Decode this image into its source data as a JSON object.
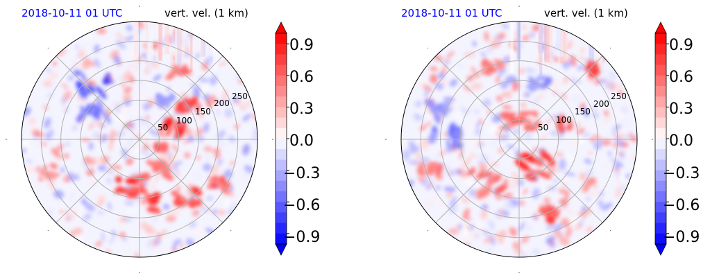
{
  "chart_data": [
    {
      "type": "heatmap",
      "title_left": "2018-10-11 01 UTC",
      "title_right": "vert. vel. (1 km)",
      "title_left_color": "#0000ff",
      "projection": "polar",
      "radial_ticks": [
        "50",
        "100",
        "150",
        "200",
        "250"
      ],
      "radial_tick_values": [
        50,
        100,
        150,
        200,
        250
      ],
      "radial_max": 300,
      "angular_grid_deg": 45,
      "grid": true,
      "colormap": "bwr",
      "colorbar": {
        "min": -1.0,
        "max": 1.0,
        "extend": "both",
        "ticks": [
          "0.9",
          "0.6",
          "0.3",
          "0.0",
          "−0.3",
          "−0.6",
          "−0.9"
        ],
        "tick_values": [
          0.9,
          0.6,
          0.3,
          0.0,
          -0.3,
          -0.6,
          -0.9
        ]
      },
      "features": [
        {
          "r": 100,
          "theta": 20,
          "value": 0.9,
          "size": 40
        },
        {
          "r": 150,
          "theta": 35,
          "value": 0.8,
          "size": 35
        },
        {
          "r": 120,
          "theta": 55,
          "value": -0.5,
          "size": 30
        },
        {
          "r": 200,
          "theta": 60,
          "value": 0.7,
          "size": 30
        },
        {
          "r": 180,
          "theta": 130,
          "value": -0.8,
          "size": 60
        },
        {
          "r": 140,
          "theta": 150,
          "value": -0.6,
          "size": 50
        },
        {
          "r": 120,
          "theta": 260,
          "value": 0.9,
          "size": 50
        },
        {
          "r": 170,
          "theta": 290,
          "value": 0.9,
          "size": 45
        },
        {
          "r": 200,
          "theta": 310,
          "value": 0.8,
          "size": 40
        },
        {
          "r": 90,
          "theta": 300,
          "value": 0.6,
          "size": 35
        },
        {
          "r": 240,
          "theta": 200,
          "value": 0.5,
          "size": 30
        },
        {
          "r": 60,
          "theta": 340,
          "value": 0.9,
          "size": 20
        },
        {
          "r": 230,
          "theta": 330,
          "value": 0.7,
          "size": 30
        }
      ]
    },
    {
      "type": "heatmap",
      "title_left": "2018-10-11 01 UTC",
      "title_right": "vert. vel. (1 km)",
      "title_left_color": "#0000ff",
      "projection": "polar",
      "radial_ticks": [
        "50",
        "100",
        "150",
        "200",
        "250"
      ],
      "radial_tick_values": [
        50,
        100,
        150,
        200,
        250
      ],
      "radial_max": 300,
      "angular_grid_deg": 45,
      "grid": true,
      "colormap": "bwr",
      "colorbar": {
        "min": -1.0,
        "max": 1.0,
        "extend": "both",
        "ticks": [
          "0.9",
          "0.6",
          "0.3",
          "0.0",
          "−0.3",
          "−0.6",
          "−0.9"
        ],
        "tick_values": [
          0.9,
          0.6,
          0.3,
          0.0,
          -0.3,
          -0.6,
          -0.9
        ]
      },
      "features": [
        {
          "r": 60,
          "theta": 90,
          "value": 0.7,
          "size": 60
        },
        {
          "r": 80,
          "theta": 300,
          "value": 0.9,
          "size": 60
        },
        {
          "r": 140,
          "theta": 230,
          "value": 0.7,
          "size": 60
        },
        {
          "r": 180,
          "theta": 180,
          "value": -0.6,
          "size": 50
        },
        {
          "r": 220,
          "theta": 160,
          "value": -0.5,
          "size": 40
        },
        {
          "r": 200,
          "theta": 110,
          "value": 0.6,
          "size": 40
        },
        {
          "r": 250,
          "theta": 45,
          "value": 0.9,
          "size": 30
        },
        {
          "r": 200,
          "theta": 290,
          "value": 0.9,
          "size": 35
        },
        {
          "r": 150,
          "theta": 70,
          "value": -0.5,
          "size": 30
        },
        {
          "r": 240,
          "theta": 200,
          "value": 0.6,
          "size": 40
        },
        {
          "r": 120,
          "theta": 20,
          "value": 0.7,
          "size": 30
        }
      ]
    }
  ]
}
